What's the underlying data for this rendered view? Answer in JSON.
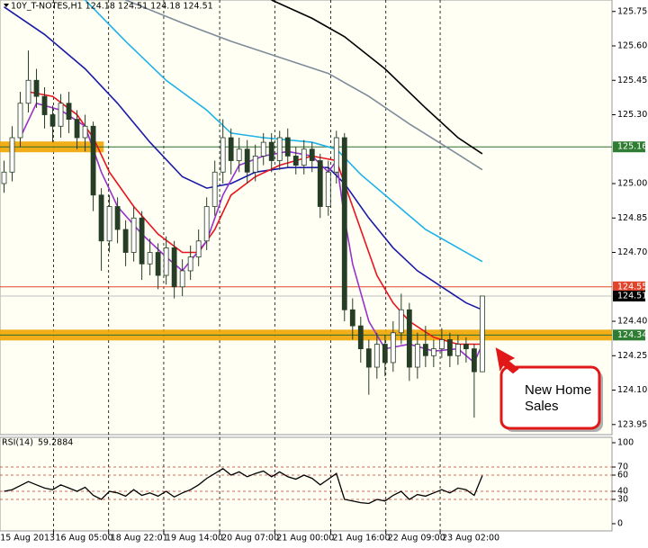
{
  "chart_data": {
    "type": "candlestick",
    "title": "10Y_T-NOTES,H1  124.18 124.51 124.18 124.51",
    "xlim": [
      -0.5,
      75
    ],
    "ylim": [
      123.91,
      125.8
    ],
    "yticks": [
      125.75,
      {
        "value": 125.6,
        "label": "125.60"
      },
      125.45,
      {
        "value": 125.3,
        "label": "125.30"
      },
      {
        "value": 125.0,
        "label": "125.00"
      },
      124.85,
      {
        "value": 124.7,
        "label": "124.70"
      },
      {
        "value": 124.4,
        "label": "124.40"
      },
      124.25,
      {
        "value": 124.1,
        "label": "124.10"
      },
      123.95
    ],
    "xticks": [
      {
        "value": -0.7,
        "label": "15 Aug 2013"
      },
      {
        "value": 6.1,
        "label": "16 Aug 05:00"
      },
      {
        "value": 12.9,
        "label": "18 Aug 22:01"
      },
      {
        "value": 19.7,
        "label": "19 Aug 14:00"
      },
      {
        "value": 26.6,
        "label": "20 Aug 07:00"
      },
      {
        "value": 33.4,
        "label": "21 Aug 00:00"
      },
      {
        "value": 40.3,
        "label": "21 Aug 16:00"
      },
      {
        "value": 47.1,
        "label": "22 Aug 09:00"
      },
      {
        "value": 53.8,
        "label": "23 Aug 02:00"
      }
    ],
    "grid": true,
    "up_color": "#ffffff",
    "down_color": "#263d26",
    "ohlc": [
      [
        125.0,
        125.1,
        124.96,
        125.05
      ],
      [
        125.05,
        125.25,
        125.01,
        125.2
      ],
      [
        125.2,
        125.4,
        125.16,
        125.35
      ],
      [
        125.35,
        125.58,
        125.31,
        125.45
      ],
      [
        125.45,
        125.5,
        125.33,
        125.38
      ],
      [
        125.38,
        125.42,
        125.24,
        125.3
      ],
      [
        125.3,
        125.34,
        125.18,
        125.25
      ],
      [
        125.25,
        125.39,
        125.2,
        125.35
      ],
      [
        125.35,
        125.4,
        125.22,
        125.28
      ],
      [
        125.28,
        125.32,
        125.15,
        125.2
      ],
      [
        125.2,
        125.3,
        125.14,
        125.25
      ],
      [
        125.25,
        125.27,
        124.88,
        124.95
      ],
      [
        124.95,
        124.98,
        124.62,
        124.75
      ],
      [
        124.75,
        124.95,
        124.7,
        124.9
      ],
      [
        124.9,
        124.94,
        124.74,
        124.8
      ],
      [
        124.8,
        124.84,
        124.64,
        124.7
      ],
      [
        124.7,
        124.9,
        124.66,
        124.85
      ],
      [
        124.85,
        124.88,
        124.58,
        124.65
      ],
      [
        124.65,
        124.76,
        124.6,
        124.7
      ],
      [
        124.7,
        124.74,
        124.54,
        124.6
      ],
      [
        124.6,
        124.77,
        124.56,
        124.72
      ],
      [
        124.72,
        124.75,
        124.5,
        124.55
      ],
      [
        124.55,
        124.67,
        124.51,
        124.62
      ],
      [
        124.62,
        124.73,
        124.58,
        124.68
      ],
      [
        124.68,
        124.8,
        124.64,
        124.75
      ],
      [
        124.75,
        124.94,
        124.71,
        124.9
      ],
      [
        124.9,
        125.1,
        124.86,
        125.05
      ],
      [
        125.05,
        125.28,
        125.0,
        125.2
      ],
      [
        125.2,
        125.24,
        125.04,
        125.1
      ],
      [
        125.1,
        125.2,
        125.05,
        125.15
      ],
      [
        125.15,
        125.19,
        125.0,
        125.05
      ],
      [
        125.05,
        125.17,
        125.01,
        125.12
      ],
      [
        125.12,
        125.22,
        125.08,
        125.18
      ],
      [
        125.18,
        125.22,
        125.05,
        125.1
      ],
      [
        125.1,
        125.23,
        125.06,
        125.2
      ],
      [
        125.2,
        125.24,
        125.07,
        125.12
      ],
      [
        125.12,
        125.16,
        125.04,
        125.08
      ],
      [
        125.08,
        125.19,
        125.04,
        125.15
      ],
      [
        125.15,
        125.18,
        125.05,
        125.1
      ],
      [
        125.1,
        125.13,
        124.85,
        124.9
      ],
      [
        124.9,
        125.1,
        124.86,
        125.05
      ],
      [
        125.05,
        125.23,
        125.0,
        125.2
      ],
      [
        125.2,
        125.22,
        124.4,
        124.45
      ],
      [
        124.45,
        124.5,
        124.32,
        124.38
      ],
      [
        124.38,
        124.42,
        124.22,
        124.28
      ],
      [
        124.28,
        124.32,
        124.08,
        124.2
      ],
      [
        124.2,
        124.35,
        124.15,
        124.3
      ],
      [
        124.3,
        124.34,
        124.16,
        124.22
      ],
      [
        124.22,
        124.4,
        124.18,
        124.35
      ],
      [
        124.35,
        124.52,
        124.3,
        124.45
      ],
      [
        124.45,
        124.48,
        124.14,
        124.2
      ],
      [
        124.2,
        124.35,
        124.15,
        124.3
      ],
      [
        124.3,
        124.38,
        124.2,
        124.25
      ],
      [
        124.25,
        124.32,
        124.2,
        124.28
      ],
      [
        124.28,
        124.37,
        124.24,
        124.32
      ],
      [
        124.32,
        124.35,
        124.2,
        124.25
      ],
      [
        124.25,
        124.34,
        124.21,
        124.3
      ],
      [
        124.3,
        124.33,
        124.22,
        124.28
      ],
      [
        124.28,
        124.3,
        123.98,
        124.18
      ],
      [
        124.18,
        124.51,
        124.18,
        124.51
      ]
    ],
    "series": [
      {
        "color": "#000000",
        "x": [
          33,
          38,
          42,
          47,
          52,
          56,
          59
        ],
        "values": [
          125.8,
          125.72,
          125.64,
          125.5,
          125.33,
          125.2,
          125.13
        ]
      },
      {
        "color": "#7f8c9a",
        "x": [
          15,
          22,
          28,
          34,
          40,
          45,
          50,
          55,
          59
        ],
        "values": [
          125.8,
          125.7,
          125.62,
          125.55,
          125.48,
          125.38,
          125.26,
          125.15,
          125.06
        ]
      },
      {
        "color": "#1fb2e8",
        "x": [
          10,
          15,
          20,
          25,
          28,
          32,
          38,
          41,
          44,
          48,
          52,
          56,
          59
        ],
        "values": [
          125.8,
          125.62,
          125.45,
          125.32,
          125.22,
          125.2,
          125.18,
          125.15,
          125.04,
          124.92,
          124.8,
          124.72,
          124.66
        ]
      },
      {
        "color": "#1a1aa8",
        "x": [
          0,
          5,
          10,
          14,
          18,
          22,
          25,
          28,
          31,
          35,
          40,
          42,
          45,
          48,
          51,
          54,
          57,
          59
        ],
        "values": [
          125.77,
          125.65,
          125.5,
          125.35,
          125.18,
          125.03,
          124.98,
          125.0,
          125.05,
          125.07,
          125.07,
          125.0,
          124.85,
          124.72,
          124.62,
          124.55,
          124.48,
          124.45
        ]
      },
      {
        "color": "#e8141e",
        "x": [
          3,
          6,
          9,
          11,
          13,
          16,
          19,
          22,
          24,
          26,
          28,
          31,
          34,
          38,
          41,
          42,
          44,
          46,
          48,
          50,
          53,
          56,
          59
        ],
        "values": [
          125.4,
          125.38,
          125.3,
          125.2,
          125.05,
          124.9,
          124.78,
          124.7,
          124.7,
          124.8,
          124.95,
          125.03,
          125.08,
          125.12,
          125.1,
          125.0,
          124.8,
          124.6,
          124.48,
          124.4,
          124.33,
          124.3,
          124.3
        ]
      },
      {
        "color": "#9933cc",
        "x": [
          2,
          4,
          7,
          10,
          12,
          14,
          17,
          20,
          22,
          25,
          27,
          29,
          32,
          35,
          38,
          40,
          41,
          42,
          43,
          45,
          47,
          50,
          53,
          56,
          58,
          59
        ],
        "values": [
          125.2,
          125.35,
          125.32,
          125.25,
          125.05,
          124.9,
          124.78,
          124.68,
          124.62,
          124.75,
          124.95,
          125.08,
          125.12,
          125.14,
          125.12,
          125.05,
          125.1,
          124.85,
          124.65,
          124.4,
          124.28,
          124.3,
          124.27,
          124.28,
          124.22,
          124.3
        ]
      }
    ],
    "levels": [
      {
        "value": 125.16,
        "color": "#2e7d32",
        "line_color": "#2e6b2e",
        "band": "#f0a500",
        "band_xlim": [
          -0.5,
          12.3
        ]
      },
      {
        "value": 124.55,
        "color": "#e0452c",
        "line_color": "#e0452c"
      },
      {
        "value": 124.51,
        "color": "#000000",
        "line_color": "#c0c0c0"
      },
      {
        "value": 124.34,
        "color": "#2e7d32",
        "line_color": "#2e6b2e",
        "band": "#f0a500",
        "band_xlim": [
          -0.5,
          75
        ]
      }
    ],
    "annotation": [
      "New Home",
      "Sales"
    ],
    "rsi": {
      "title": "RSI(14)",
      "color": "#000000",
      "ylim": [
        0,
        100
      ],
      "yticks": [
        100,
        70,
        60,
        40,
        30,
        0
      ],
      "levels": [
        70,
        60,
        40,
        30
      ],
      "values": [
        40,
        42,
        47,
        52,
        48,
        44,
        42,
        48,
        44,
        40,
        45,
        35,
        30,
        40,
        38,
        34,
        42,
        35,
        38,
        34,
        40,
        33,
        38,
        42,
        48,
        56,
        62,
        68,
        60,
        64,
        58,
        62,
        65,
        58,
        64,
        58,
        55,
        60,
        56,
        48,
        55,
        62,
        30,
        28,
        26,
        25,
        30,
        28,
        35,
        40,
        30,
        36,
        34,
        38,
        42,
        38,
        44,
        42,
        35,
        59.2884
      ]
    }
  }
}
